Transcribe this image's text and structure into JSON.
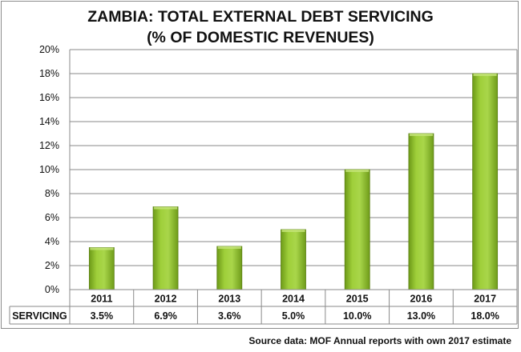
{
  "chart_data": {
    "type": "bar",
    "title": [
      "ZAMBIA: TOTAL EXTERNAL DEBT SERVICING",
      "(% OF DOMESTIC REVENUES)"
    ],
    "categories": [
      "2011",
      "2012",
      "2013",
      "2014",
      "2015",
      "2016",
      "2017"
    ],
    "series": [
      {
        "name": "SERVICING",
        "values": [
          3.5,
          6.9,
          3.6,
          5.0,
          10.0,
          13.0,
          18.0
        ]
      }
    ],
    "table_row_label": "SERVICING",
    "table_values": [
      "3.5%",
      "6.9%",
      "3.6%",
      "5.0%",
      "10.0%",
      "13.0%",
      "18.0%"
    ],
    "y_ticks": [
      "0%",
      "2%",
      "4%",
      "6%",
      "8%",
      "10%",
      "12%",
      "14%",
      "16%",
      "18%",
      "20%"
    ],
    "ylim": [
      0,
      20
    ],
    "grid": true,
    "data_table": true,
    "legend": "none",
    "bar_color": "#8fbf26"
  },
  "source_note": "Source data: MOF Annual reports with own 2017 estimate"
}
